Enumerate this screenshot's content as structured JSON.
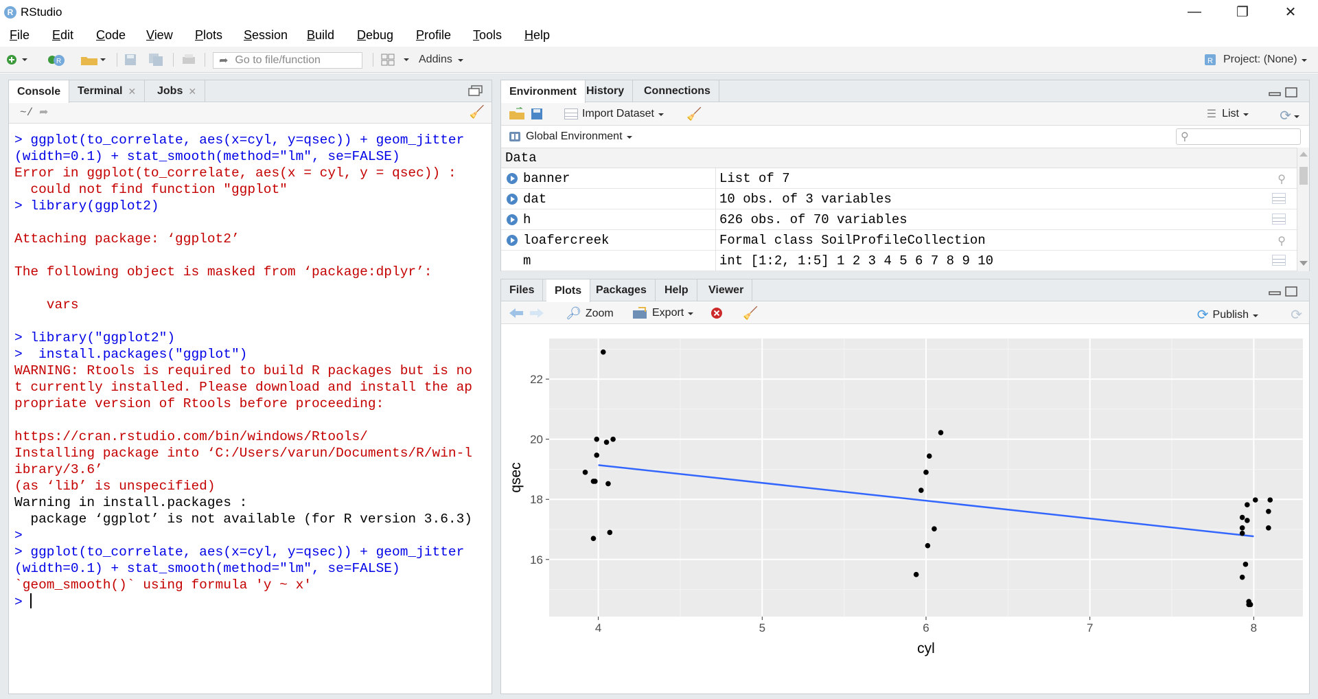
{
  "window": {
    "title": "RStudio",
    "app_icon_letter": "R",
    "minimize": "—",
    "restore": "❐",
    "close": "✕"
  },
  "menu": [
    {
      "label": "File",
      "underline": "F",
      "rest": "ile"
    },
    {
      "label": "Edit",
      "underline": "E",
      "rest": "dit"
    },
    {
      "label": "Code",
      "underline": "C",
      "rest": "ode"
    },
    {
      "label": "View",
      "underline": "V",
      "rest": "iew"
    },
    {
      "label": "Plots",
      "underline": "P",
      "rest": "lots"
    },
    {
      "label": "Session",
      "underline": "S",
      "rest": "ession"
    },
    {
      "label": "Build",
      "underline": "B",
      "rest": "uild"
    },
    {
      "label": "Debug",
      "underline": "D",
      "rest": "ebug"
    },
    {
      "label": "Profile",
      "underline": "P",
      "rest": "rofile"
    },
    {
      "label": "Tools",
      "underline": "T",
      "rest": "ools"
    },
    {
      "label": "Help",
      "underline": "H",
      "rest": "elp"
    }
  ],
  "toolbar": {
    "goto_placeholder": "Go to file/function",
    "addins": "Addins",
    "project": "Project: (None)"
  },
  "console": {
    "tabs": [
      "Console",
      "Terminal",
      "Jobs"
    ],
    "path": "~/",
    "lines": [
      {
        "t": "> ggplot(to_correlate, aes(x=cyl, y=qsec)) + geom_jitter",
        "c": "blue"
      },
      {
        "t": "(width=0.1) + stat_smooth(method=\"lm\", se=FALSE)",
        "c": "blue"
      },
      {
        "t": "Error in ggplot(to_correlate, aes(x = cyl, y = qsec)) :",
        "c": "red"
      },
      {
        "t": "  could not find function \"ggplot\"",
        "c": "red"
      },
      {
        "t": "> library(ggplot2)",
        "c": "blue"
      },
      {
        "t": "",
        "c": "black"
      },
      {
        "t": "Attaching package: ‘ggplot2’",
        "c": "red"
      },
      {
        "t": "",
        "c": "black"
      },
      {
        "t": "The following object is masked from ‘package:dplyr’:",
        "c": "red"
      },
      {
        "t": "",
        "c": "black"
      },
      {
        "t": "    vars",
        "c": "red"
      },
      {
        "t": "",
        "c": "black"
      },
      {
        "t": "> library(\"ggplot2\")",
        "c": "blue"
      },
      {
        "t": ">  install.packages(\"ggplot\")",
        "c": "blue"
      },
      {
        "t": "WARNING: Rtools is required to build R packages but is no",
        "c": "red"
      },
      {
        "t": "t currently installed. Please download and install the ap",
        "c": "red"
      },
      {
        "t": "propriate version of Rtools before proceeding:",
        "c": "red"
      },
      {
        "t": "",
        "c": "black"
      },
      {
        "t": "https://cran.rstudio.com/bin/windows/Rtools/",
        "c": "red"
      },
      {
        "t": "Installing package into ‘C:/Users/varun/Documents/R/win-l",
        "c": "red"
      },
      {
        "t": "ibrary/3.6’",
        "c": "red"
      },
      {
        "t": "(as ‘lib’ is unspecified)",
        "c": "red"
      },
      {
        "t": "Warning in install.packages :",
        "c": "black"
      },
      {
        "t": "  package ‘ggplot’ is not available (for R version 3.6.3)",
        "c": "black"
      },
      {
        "t": ">",
        "c": "blue"
      },
      {
        "t": "> ggplot(to_correlate, aes(x=cyl, y=qsec)) + geom_jitter",
        "c": "blue"
      },
      {
        "t": "(width=0.1) + stat_smooth(method=\"lm\", se=FALSE)",
        "c": "blue"
      },
      {
        "t": "`geom_smooth()` using formula 'y ~ x'",
        "c": "red"
      },
      {
        "t": "> ",
        "c": "blue"
      }
    ]
  },
  "environment": {
    "tabs": [
      "Environment",
      "History",
      "Connections"
    ],
    "import_dataset": "Import Dataset",
    "list_label": "List",
    "global_env": "Global Environment",
    "search_placeholder": "",
    "section": "Data",
    "rows": [
      {
        "name": "banner",
        "value": "List of 7",
        "icon": "search-icon",
        "play": true
      },
      {
        "name": "dat",
        "value": "10 obs. of 3 variables",
        "icon": "grid-icon",
        "play": true
      },
      {
        "name": "h",
        "value": "626 obs. of 70 variables",
        "icon": "grid-icon",
        "play": true
      },
      {
        "name": "loafercreek",
        "value": "Formal class SoilProfileCollection",
        "icon": "search-icon",
        "play": true
      },
      {
        "name": "m",
        "value": "int [1:2, 1:5] 1 2 3 4 5 6 7 8 9 10",
        "icon": "grid-icon",
        "play": false
      }
    ]
  },
  "files": {
    "tabs": [
      "Files",
      "Plots",
      "Packages",
      "Help",
      "Viewer"
    ],
    "zoom": "Zoom",
    "export": "Export",
    "publish": "Publish"
  },
  "chart_data": {
    "type": "scatter",
    "xlabel": "cyl",
    "ylabel": "qsec",
    "xlim": [
      3.7,
      8.3
    ],
    "ylim": [
      14.1,
      23.35
    ],
    "xticks": [
      4,
      5,
      6,
      7,
      8
    ],
    "yticks": [
      16,
      18,
      20,
      22
    ],
    "grid": true,
    "background": "#ebebeb",
    "points": [
      [
        4.03,
        22.9
      ],
      [
        3.99,
        20.0
      ],
      [
        4.05,
        19.9
      ],
      [
        4.09,
        20.0
      ],
      [
        3.99,
        19.47
      ],
      [
        3.92,
        18.9
      ],
      [
        3.97,
        18.6
      ],
      [
        3.98,
        18.6
      ],
      [
        4.06,
        18.52
      ],
      [
        3.97,
        16.7
      ],
      [
        4.07,
        16.9
      ],
      [
        6.09,
        20.22
      ],
      [
        6.02,
        19.44
      ],
      [
        6.0,
        18.9
      ],
      [
        5.97,
        18.3
      ],
      [
        6.05,
        17.02
      ],
      [
        6.01,
        16.46
      ],
      [
        5.94,
        15.5
      ],
      [
        7.93,
        17.4
      ],
      [
        7.96,
        17.3
      ],
      [
        7.96,
        17.82
      ],
      [
        8.01,
        17.98
      ],
      [
        8.1,
        17.98
      ],
      [
        8.09,
        17.6
      ],
      [
        7.93,
        17.05
      ],
      [
        7.93,
        16.87
      ],
      [
        8.09,
        17.05
      ],
      [
        7.95,
        15.84
      ],
      [
        7.93,
        15.41
      ],
      [
        7.97,
        14.6
      ],
      [
        7.97,
        14.5
      ],
      [
        7.98,
        14.5
      ]
    ],
    "fit_line": {
      "x": [
        4,
        8
      ],
      "y": [
        19.14,
        16.77
      ],
      "color": "#3366ff"
    }
  }
}
